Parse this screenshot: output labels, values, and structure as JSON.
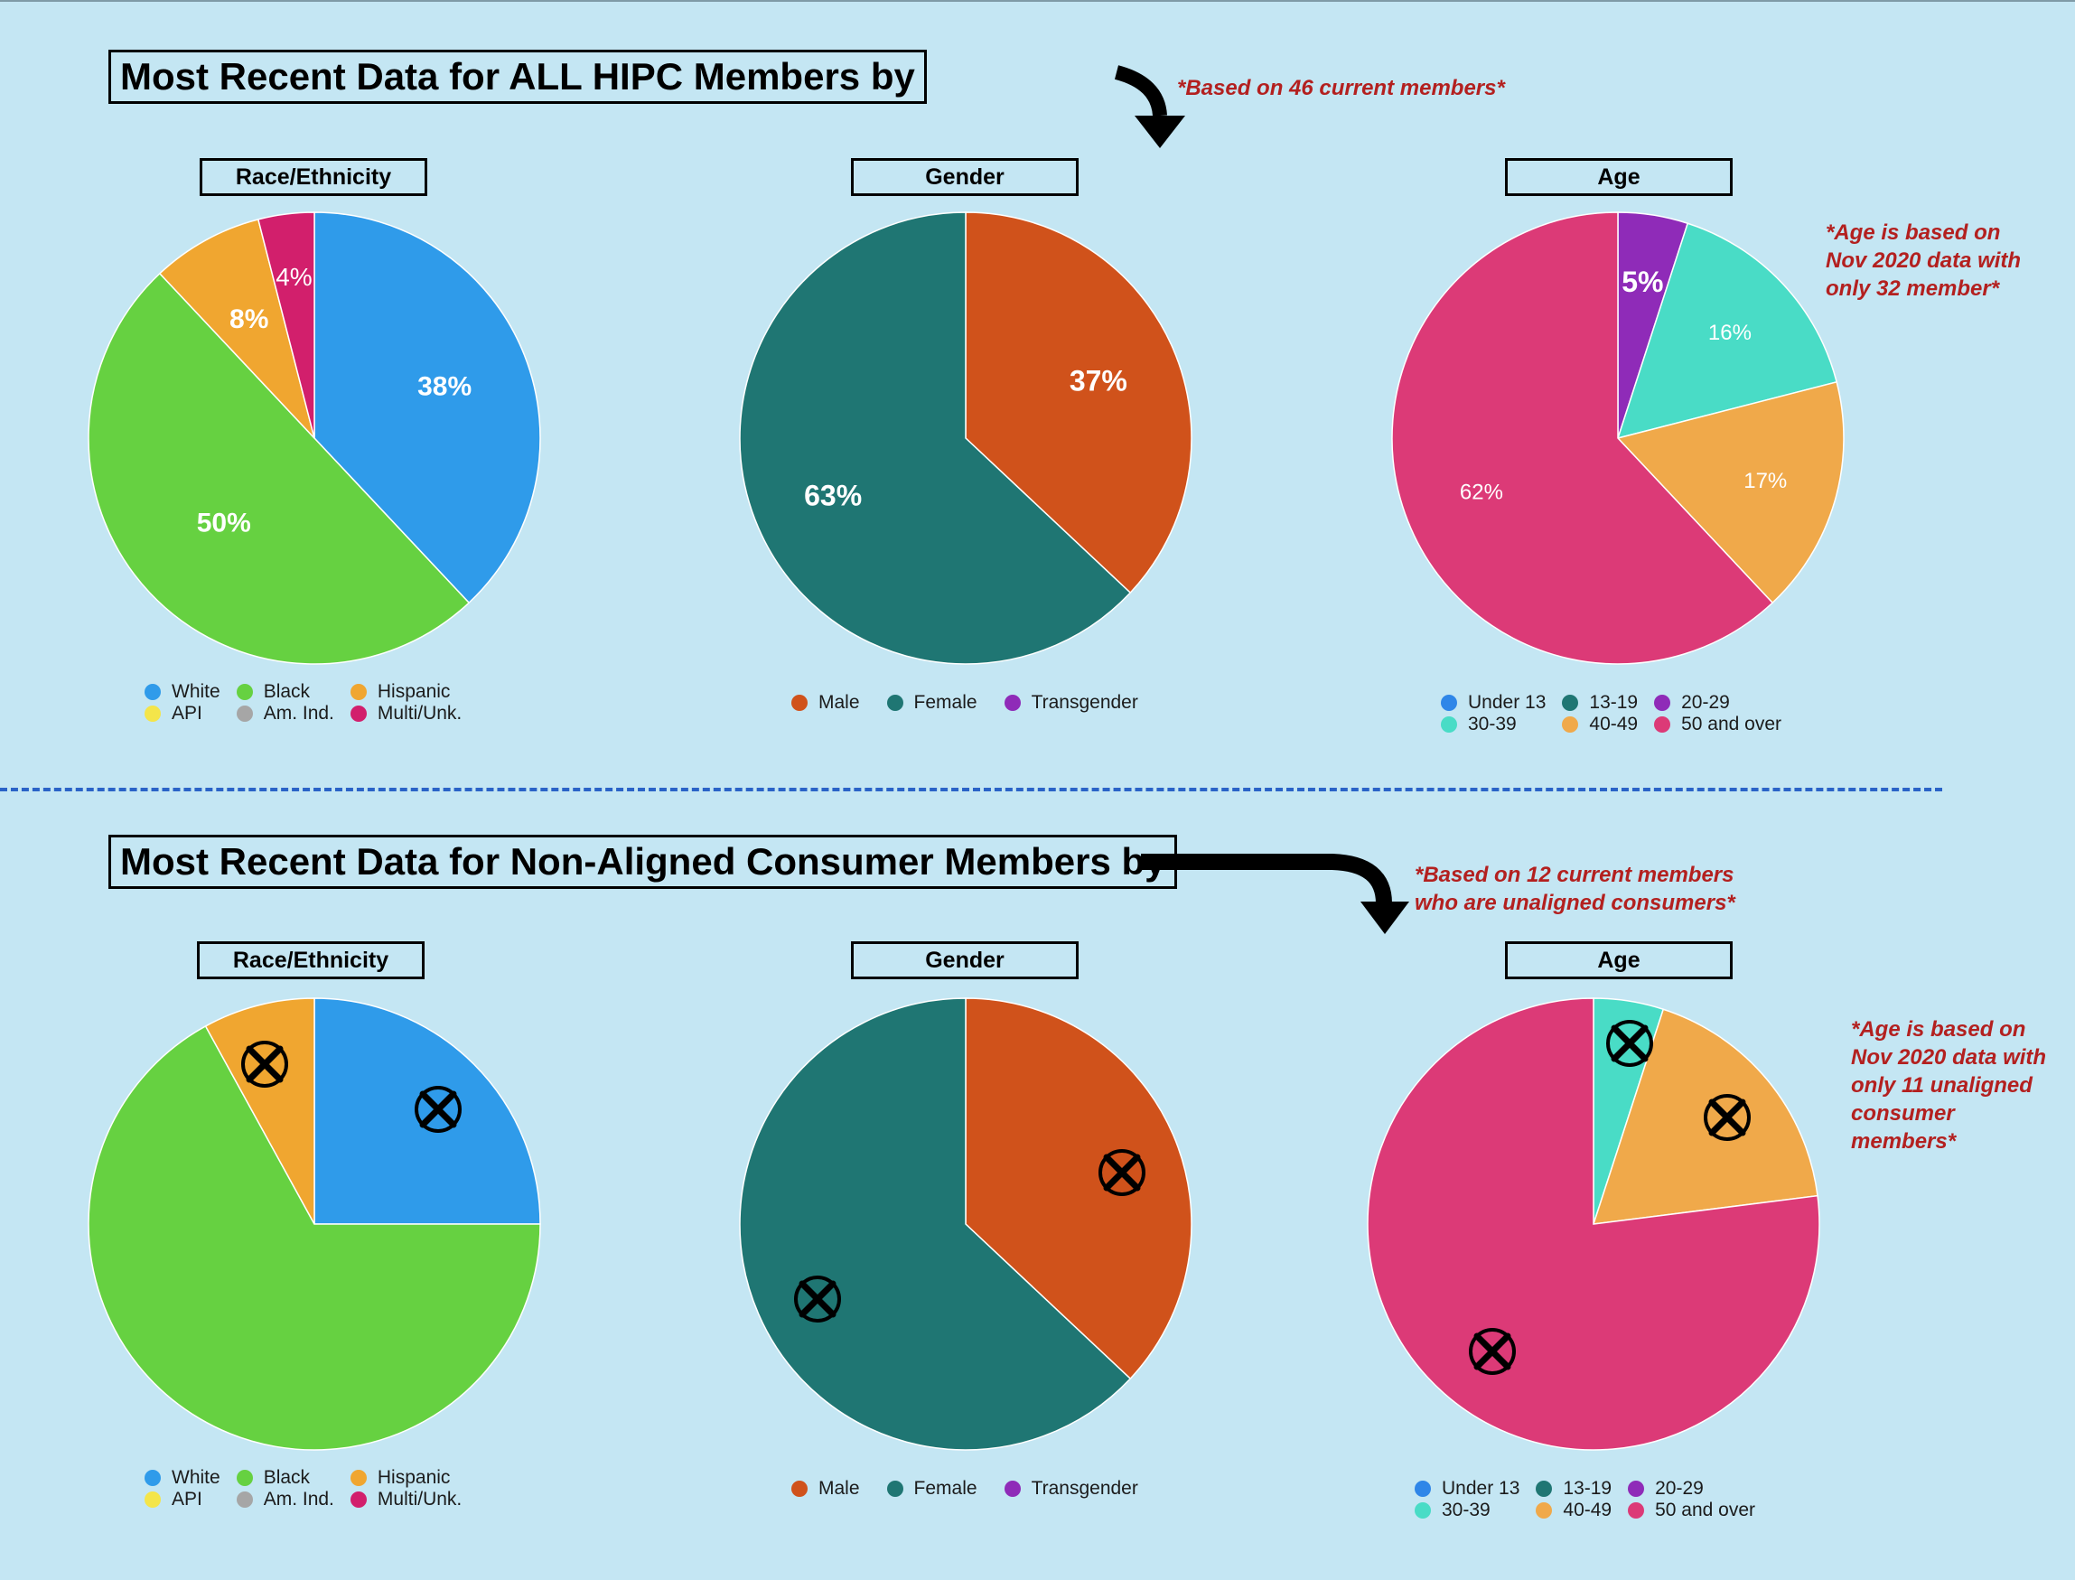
{
  "section_top": {
    "title": "Most Recent Data for ALL HIPC Members by",
    "note": "*Based on 46 current members*",
    "age_note": [
      "*Age is based on",
      "Nov 2020 data with",
      "only 32 member*"
    ]
  },
  "section_bottom": {
    "title": "Most Recent Data for Non-Aligned Consumer Members by",
    "note": [
      "*Based on 12 current members",
      "who are unaligned consumers*"
    ],
    "age_note": [
      "*Age is based on",
      "Nov 2020 data with",
      "only 11 unaligned",
      "consumer",
      "members*"
    ]
  },
  "legends": {
    "race": [
      {
        "label": "White",
        "color": "#2f9bea"
      },
      {
        "label": "Black",
        "color": "#66d141"
      },
      {
        "label": "Hispanic",
        "color": "#f0a630"
      },
      {
        "label": "API",
        "color": "#f4e54a"
      },
      {
        "label": "Am. Ind.",
        "color": "#a6a6a6"
      },
      {
        "label": "Multi/Unk.",
        "color": "#d21f6c"
      }
    ],
    "gender": [
      {
        "label": "Male",
        "color": "#d0521b"
      },
      {
        "label": "Female",
        "color": "#1f7673"
      },
      {
        "label": "Transgender",
        "color": "#8f2bb8"
      }
    ],
    "age": [
      {
        "label": "Under 13",
        "color": "#2f86e8"
      },
      {
        "label": "13-19",
        "color": "#1f7673"
      },
      {
        "label": "20-29",
        "color": "#8f2bb8"
      },
      {
        "label": "30-39",
        "color": "#49dcc6"
      },
      {
        "label": "40-49",
        "color": "#f0a94a"
      },
      {
        "label": "50 and over",
        "color": "#dc3a77"
      }
    ]
  },
  "chart_data": [
    {
      "type": "pie",
      "title": "Race/Ethnicity",
      "categories": [
        "White",
        "Black",
        "Hispanic",
        "Multi/Unk."
      ],
      "values": [
        38,
        50,
        8,
        4
      ],
      "data_labels": [
        "38%",
        "50%",
        "8%",
        "4%"
      ],
      "colors": [
        "#2f9bea",
        "#66d141",
        "#f0a630",
        "#d21f6c"
      ]
    },
    {
      "type": "pie",
      "title": "Gender",
      "categories": [
        "Male",
        "Female"
      ],
      "values": [
        37,
        63
      ],
      "data_labels": [
        "37%",
        "63%"
      ],
      "colors": [
        "#d0521b",
        "#1f7673"
      ]
    },
    {
      "type": "pie",
      "title": "Age",
      "categories": [
        "20-29",
        "30-39",
        "40-49",
        "50 and over"
      ],
      "values": [
        5,
        16,
        17,
        62
      ],
      "data_labels": [
        "5%",
        "16%",
        "17%",
        "62%"
      ],
      "colors": [
        "#8f2bb8",
        "#49dcc6",
        "#f0a94a",
        "#dc3a77"
      ]
    },
    {
      "type": "pie",
      "title": "Race/Ethnicity",
      "categories": [
        "White",
        "Black",
        "Hispanic"
      ],
      "values": [
        25,
        67,
        8
      ],
      "colors": [
        "#2f9bea",
        "#66d141",
        "#f0a630"
      ]
    },
    {
      "type": "pie",
      "title": "Gender",
      "categories": [
        "Male",
        "Female"
      ],
      "values": [
        37,
        63
      ],
      "colors": [
        "#d0521b",
        "#1f7673"
      ]
    },
    {
      "type": "pie",
      "title": "Age",
      "categories": [
        "30-39",
        "40-49",
        "50 and over"
      ],
      "values": [
        5,
        18,
        77
      ],
      "colors": [
        "#49dcc6",
        "#f0a94a",
        "#dc3a77"
      ]
    }
  ]
}
